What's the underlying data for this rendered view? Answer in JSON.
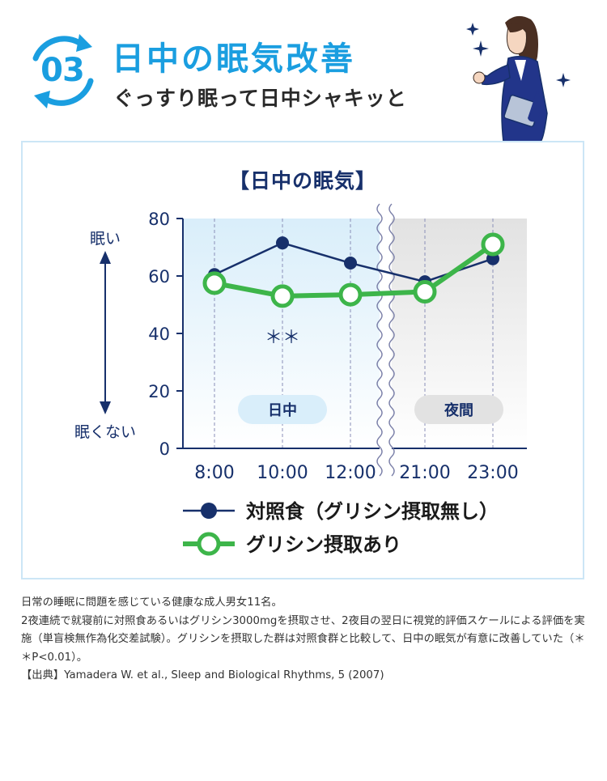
{
  "header": {
    "number": "03",
    "title": "日中の眠気改善",
    "subtitle": "ぐっすり眠って日中シャキッと"
  },
  "colors": {
    "accent": "#1a9ee0",
    "navy": "#17306b",
    "green": "#3db54a",
    "day_band": "#d9eefa",
    "night_band": "#e2e2e2"
  },
  "chart_data": {
    "type": "line",
    "title": "【日中の眠気】",
    "x": [
      "8:00",
      "10:00",
      "12:00",
      "21:00",
      "23:00"
    ],
    "ylim": [
      0,
      80
    ],
    "yticks": [
      0,
      20,
      40,
      60,
      80
    ],
    "y_axis_top_label": "眠い",
    "y_axis_bottom_label": "眠くない",
    "axis_break": "between 12:00 and 21:00",
    "regions": [
      {
        "label": "日中",
        "from": "8:00",
        "to": "12:00"
      },
      {
        "label": "夜間",
        "from": "21:00",
        "to": "23:00"
      }
    ],
    "annotations": [
      {
        "text": "＊＊",
        "at": "10:00"
      }
    ],
    "series": [
      {
        "name": "対照食（グリシン摂取無し）",
        "values": [
          60.5,
          71.5,
          64.5,
          58,
          66
        ],
        "color": "#17306b",
        "marker": "filled-circle"
      },
      {
        "name": "グリシン摂取あり",
        "values": [
          57.5,
          53,
          53.5,
          54.5,
          71
        ],
        "color": "#3db54a",
        "marker": "open-circle"
      }
    ],
    "legend_position": "bottom",
    "grid": "vertical dashed"
  },
  "notes": [
    "日常の睡眠に問題を感じている健康な成人男女11名。",
    "2夜連続で就寝前に対照食あるいはグリシン3000mgを摂取させ、2夜目の翌日に視覚的評価スケールによる評価を実施（単盲検無作為化交差試験）。グリシンを摂取した群は対照食群と比較して、日中の眠気が有意に改善していた（＊＊P<0.01）。",
    "【出典】Yamadera W. et al., Sleep and Biological Rhythms, 5 (2007)"
  ]
}
